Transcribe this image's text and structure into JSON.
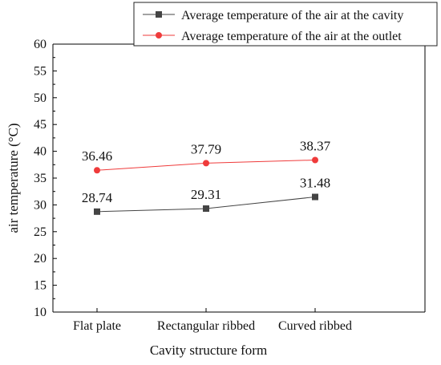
{
  "chart_data": {
    "type": "line",
    "xlabel": "Cavity structure form",
    "ylabel": "air temperature (°C)",
    "categories": [
      "Flat plate",
      "Rectangular ribbed",
      "Curved ribbed"
    ],
    "ylim": [
      10,
      60
    ],
    "yticks": [
      10,
      15,
      20,
      25,
      30,
      35,
      40,
      45,
      50,
      55,
      60
    ],
    "series": [
      {
        "name": "Average temperature of the air at the cavity",
        "values": [
          28.74,
          29.31,
          31.48
        ],
        "labels": [
          "28.74",
          "29.31",
          "31.48"
        ],
        "color": "#444444",
        "marker": "square"
      },
      {
        "name": "Average temperature of the air at the outlet",
        "values": [
          36.46,
          37.79,
          38.37
        ],
        "labels": [
          "36.46",
          "37.79",
          "38.37"
        ],
        "color": "#ef3b3b",
        "marker": "circle"
      }
    ],
    "grid": false,
    "legend_position": "top-right"
  }
}
